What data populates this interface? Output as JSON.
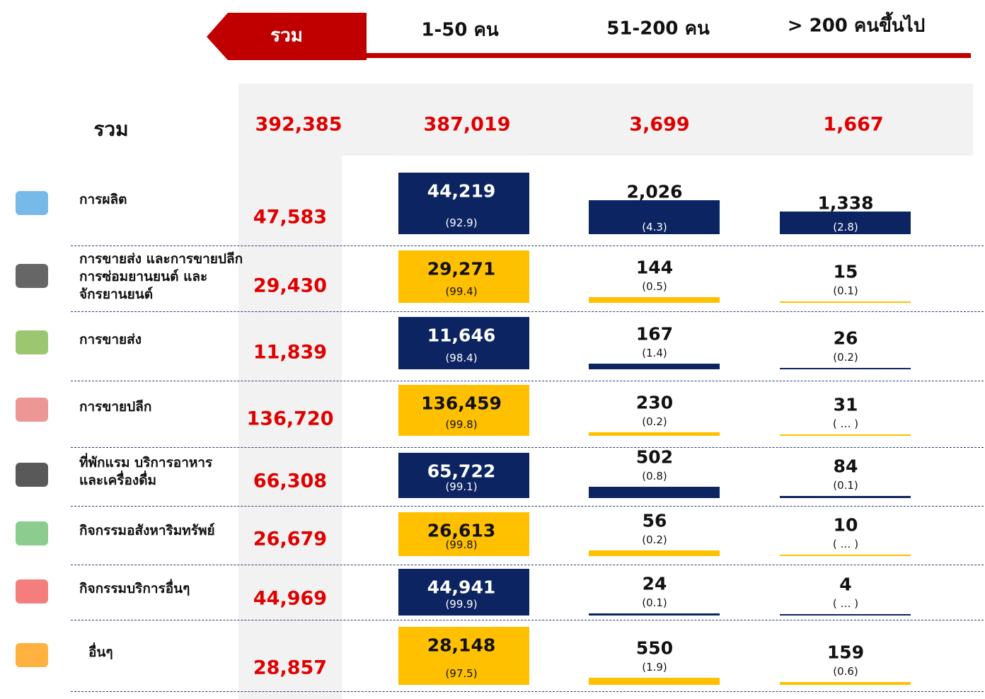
{
  "header": {
    "columns": [
      "รวม",
      "1-50 คน",
      "51-200 คน",
      "> 200 คนขึ้นไป"
    ]
  },
  "total_row": {
    "label": "รวม",
    "values": [
      "392,385",
      "387,019",
      "3,699",
      "1,667"
    ]
  },
  "rows": [
    {
      "label": [
        "การผลิต"
      ],
      "total": "47,583",
      "cells": [
        {
          "value": "44,219",
          "pct": "(92.9)"
        },
        {
          "value": "2,026",
          "pct": "(4.3)"
        },
        {
          "value": "1,338",
          "pct": "(2.8)"
        }
      ]
    },
    {
      "label": [
        "การขายส่ง และการขายปลีก",
        "การซ่อมยานยนต์ และ",
        "จักรยานยนต์"
      ],
      "total": "29,430",
      "cells": [
        {
          "value": "29,271",
          "pct": "(99.4)"
        },
        {
          "value": "144",
          "pct": "(0.5)"
        },
        {
          "value": "15",
          "pct": "(0.1)"
        }
      ]
    },
    {
      "label": [
        "การขายส่ง"
      ],
      "total": "11,839",
      "cells": [
        {
          "value": "11,646",
          "pct": "(98.4)"
        },
        {
          "value": "167",
          "pct": "(1.4)"
        },
        {
          "value": "26",
          "pct": "(0.2)"
        }
      ]
    },
    {
      "label": [
        "การขายปลีก"
      ],
      "total": "136,720",
      "cells": [
        {
          "value": "136,459",
          "pct": "(99.8)"
        },
        {
          "value": "230",
          "pct": "(0.2)"
        },
        {
          "value": "31",
          "pct": "( … )"
        }
      ]
    },
    {
      "label": [
        "ที่พักแรม บริการอาหาร",
        "และเครื่องดื่ม"
      ],
      "total": "66,308",
      "cells": [
        {
          "value": "65,722",
          "pct": "(99.1)"
        },
        {
          "value": "502",
          "pct": "(0.8)"
        },
        {
          "value": "84",
          "pct": "(0.1)"
        }
      ]
    },
    {
      "label": [
        "กิจกรรมอสังหาริมทรัพย์"
      ],
      "total": "26,679",
      "cells": [
        {
          "value": "26,613",
          "pct": "(99.8)"
        },
        {
          "value": "56",
          "pct": "(0.2)"
        },
        {
          "value": "10",
          "pct": "( … )"
        }
      ]
    },
    {
      "label": [
        "กิจกรรมบริการอื่นๆ"
      ],
      "total": "44,969",
      "cells": [
        {
          "value": "44,941",
          "pct": "(99.9)"
        },
        {
          "value": "24",
          "pct": "(0.1)"
        },
        {
          "value": "4",
          "pct": "( … )"
        }
      ]
    },
    {
      "label": [
        "อื่นๆ"
      ],
      "total": "28,857",
      "cells": [
        {
          "value": "28,148",
          "pct": "(97.5)"
        },
        {
          "value": "550",
          "pct": "(1.9)"
        },
        {
          "value": "159",
          "pct": "(0.6)"
        }
      ]
    }
  ]
}
